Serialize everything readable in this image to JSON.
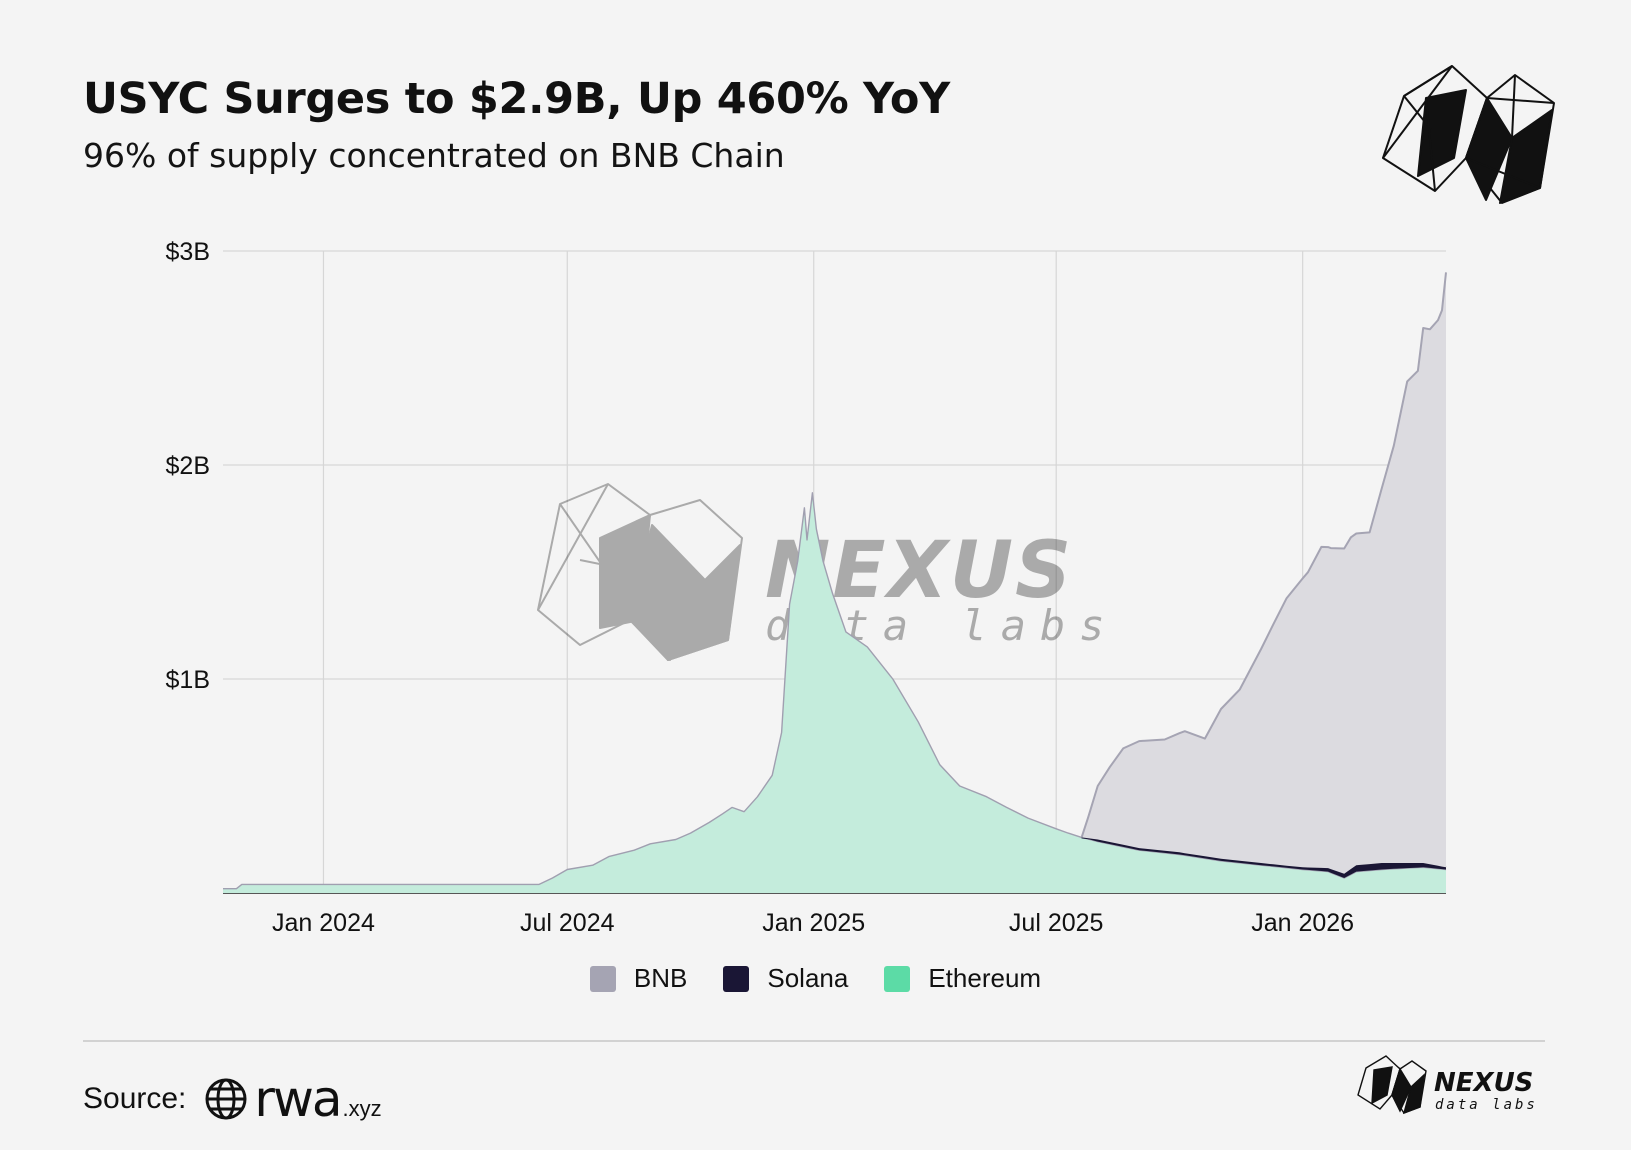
{
  "header": {
    "title": "USYC Surges to $2.9B, Up 460% YoY",
    "subtitle": "96% of supply concentrated on BNB Chain"
  },
  "watermark": {
    "brand": "NEXUS",
    "tagline": "data labs"
  },
  "footer": {
    "source_label": "Source:",
    "source_brand": "rwa",
    "source_domain": ".xyz",
    "logo_brand": "NEXUS",
    "logo_tagline": "data labs"
  },
  "colors": {
    "background": "#f4f4f4",
    "bnb": "#dcdbe0",
    "bnb_line": "#a5a4b3",
    "solana": "#1a1635",
    "ethereum": "#c4ecdc",
    "ethereum_line": "#a09fb0",
    "legend_bnb": "#a5a4b3",
    "legend_solana": "#1a1635",
    "legend_ethereum": "#5cdba6"
  },
  "chart_data": {
    "type": "area",
    "stacked": true,
    "title": "USYC Surges to $2.9B, Up 460% YoY",
    "subtitle": "96% of supply concentrated on BNB Chain",
    "xlabel": "",
    "ylabel": "",
    "y_unit": "USD billions",
    "ylim": [
      0,
      3
    ],
    "y_ticks": [
      {
        "value": 1,
        "label": "$1B"
      },
      {
        "value": 2,
        "label": "$2B"
      },
      {
        "value": 3,
        "label": "$3B"
      }
    ],
    "x_range": [
      "2023-10-18",
      "2026-04-18"
    ],
    "x_ticks": [
      {
        "date": "2024-01-01",
        "label": "Jan 2024"
      },
      {
        "date": "2024-07-01",
        "label": "Jul 2024"
      },
      {
        "date": "2025-01-01",
        "label": "Jan 2025"
      },
      {
        "date": "2025-07-01",
        "label": "Jul 2025"
      },
      {
        "date": "2026-01-01",
        "label": "Jan 2026"
      }
    ],
    "grid": true,
    "legend_position": "bottom",
    "series": [
      {
        "name": "Ethereum",
        "points": [
          [
            "2023-10-18",
            0.02
          ],
          [
            "2023-10-28",
            0.02
          ],
          [
            "2023-11-01",
            0.04
          ],
          [
            "2024-03-01",
            0.04
          ],
          [
            "2024-06-10",
            0.04
          ],
          [
            "2024-06-20",
            0.07
          ],
          [
            "2024-07-01",
            0.11
          ],
          [
            "2024-07-20",
            0.13
          ],
          [
            "2024-08-01",
            0.17
          ],
          [
            "2024-08-20",
            0.2
          ],
          [
            "2024-09-01",
            0.23
          ],
          [
            "2024-09-20",
            0.25
          ],
          [
            "2024-10-01",
            0.28
          ],
          [
            "2024-10-15",
            0.33
          ],
          [
            "2024-10-25",
            0.37
          ],
          [
            "2024-11-01",
            0.4
          ],
          [
            "2024-11-10",
            0.38
          ],
          [
            "2024-11-20",
            0.45
          ],
          [
            "2024-12-01",
            0.55
          ],
          [
            "2024-12-08",
            0.75
          ],
          [
            "2024-12-14",
            1.35
          ],
          [
            "2024-12-20",
            1.55
          ],
          [
            "2024-12-25",
            1.8
          ],
          [
            "2024-12-27",
            1.65
          ],
          [
            "2024-12-31",
            1.87
          ],
          [
            "2025-01-03",
            1.7
          ],
          [
            "2025-01-08",
            1.55
          ],
          [
            "2025-01-15",
            1.4
          ],
          [
            "2025-01-25",
            1.22
          ],
          [
            "2025-02-10",
            1.15
          ],
          [
            "2025-03-01",
            1.0
          ],
          [
            "2025-03-20",
            0.8
          ],
          [
            "2025-04-05",
            0.6
          ],
          [
            "2025-04-20",
            0.5
          ],
          [
            "2025-05-10",
            0.45
          ],
          [
            "2025-05-25",
            0.4
          ],
          [
            "2025-06-10",
            0.35
          ],
          [
            "2025-07-01",
            0.3
          ],
          [
            "2025-07-10",
            0.28
          ],
          [
            "2025-07-20",
            0.26
          ],
          [
            "2025-08-01",
            0.24
          ],
          [
            "2025-09-01",
            0.2
          ],
          [
            "2025-10-01",
            0.18
          ],
          [
            "2025-11-01",
            0.15
          ],
          [
            "2025-12-01",
            0.13
          ],
          [
            "2026-01-01",
            0.11
          ],
          [
            "2026-01-20",
            0.1
          ],
          [
            "2026-02-01",
            0.07
          ],
          [
            "2026-02-10",
            0.1
          ],
          [
            "2026-03-01",
            0.11
          ],
          [
            "2026-04-01",
            0.12
          ],
          [
            "2026-04-18",
            0.11
          ]
        ]
      },
      {
        "name": "Solana",
        "points": [
          [
            "2023-10-18",
            0
          ],
          [
            "2025-07-20",
            0
          ],
          [
            "2025-08-01",
            0.01
          ],
          [
            "2025-12-01",
            0.01
          ],
          [
            "2026-01-01",
            0.01
          ],
          [
            "2026-02-01",
            0.02
          ],
          [
            "2026-02-10",
            0.03
          ],
          [
            "2026-03-01",
            0.03
          ],
          [
            "2026-04-01",
            0.02
          ],
          [
            "2026-04-18",
            0.01
          ]
        ]
      },
      {
        "name": "BNB",
        "points": [
          [
            "2023-10-18",
            0
          ],
          [
            "2025-07-20",
            0
          ],
          [
            "2025-07-25",
            0.1
          ],
          [
            "2025-08-01",
            0.25
          ],
          [
            "2025-08-10",
            0.35
          ],
          [
            "2025-08-20",
            0.45
          ],
          [
            "2025-09-01",
            0.5
          ],
          [
            "2025-09-20",
            0.52
          ],
          [
            "2025-10-05",
            0.57
          ],
          [
            "2025-10-20",
            0.55
          ],
          [
            "2025-11-01",
            0.7
          ],
          [
            "2025-11-15",
            0.8
          ],
          [
            "2025-12-01",
            1.0
          ],
          [
            "2025-12-10",
            1.12
          ],
          [
            "2025-12-20",
            1.25
          ],
          [
            "2026-01-01",
            1.35
          ],
          [
            "2026-01-05",
            1.38
          ],
          [
            "2026-01-15",
            1.5
          ],
          [
            "2026-01-22",
            1.5
          ],
          [
            "2026-02-01",
            1.52
          ],
          [
            "2026-02-06",
            1.55
          ],
          [
            "2026-02-12",
            1.55
          ],
          [
            "2026-02-20",
            1.55
          ],
          [
            "2026-03-01",
            1.75
          ],
          [
            "2026-03-10",
            1.95
          ],
          [
            "2026-03-20",
            2.25
          ],
          [
            "2026-03-28",
            2.3
          ],
          [
            "2026-04-01",
            2.5
          ],
          [
            "2026-04-06",
            2.5
          ],
          [
            "2026-04-12",
            2.55
          ],
          [
            "2026-04-15",
            2.6
          ],
          [
            "2026-04-18",
            2.78
          ]
        ]
      }
    ]
  }
}
